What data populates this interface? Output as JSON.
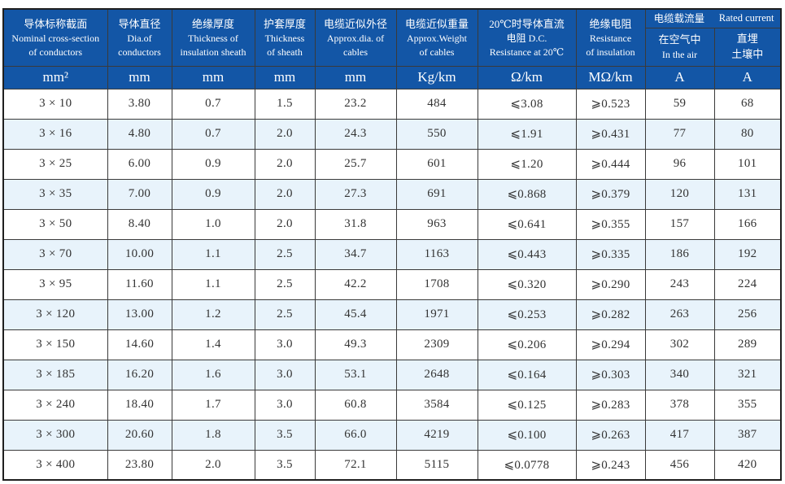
{
  "table_title": "cable-specification-table",
  "colors": {
    "header_bg": "#1356a6",
    "header_text": "#ffffff",
    "stripe": "#e8f3fb",
    "border": "#3a3a3a",
    "text": "#333333"
  },
  "header": {
    "cols": [
      {
        "cn": "导体标称截面",
        "en1": "Nominal cross-section",
        "en2": "of conductors"
      },
      {
        "cn": "导体直径",
        "en1": "Dia.of",
        "en2": "conductors"
      },
      {
        "cn": "绝缘厚度",
        "en1": "Thickness of",
        "en2": "insulation sheath"
      },
      {
        "cn": "护套厚度",
        "en1": "Thickness",
        "en2": "of sheath"
      },
      {
        "cn": "电缆近似外径",
        "en1": "Approx.dia. of",
        "en2": "cables"
      },
      {
        "cn": "电缆近似重量",
        "en1": "Approx.Weight",
        "en2": "of cables"
      },
      {
        "cn": "20℃时导体直流",
        "en1": "电阻 D.C.",
        "en2": "Resistance at 20℃"
      },
      {
        "cn": "绝缘电阻",
        "en1": "Resistance",
        "en2": "of insulation"
      }
    ],
    "rated": {
      "cn_title": "电缆载流量",
      "en_title": "Rated current",
      "air_line1": "在空气中",
      "air_line2": "In the air",
      "soil_line1": "直埋",
      "soil_line2": "土壤中"
    }
  },
  "units": [
    "mm²",
    "mm",
    "mm",
    "mm",
    "mm",
    "Kg/km",
    "Ω/km",
    "MΩ/km",
    "A",
    "A"
  ],
  "rows": [
    [
      "3 × 10",
      "3.80",
      "0.7",
      "1.5",
      "23.2",
      "484",
      "⩽3.08",
      "⩾0.523",
      "59",
      "68"
    ],
    [
      "3 × 16",
      "4.80",
      "0.7",
      "2.0",
      "24.3",
      "550",
      "⩽1.91",
      "⩾0.431",
      "77",
      "80"
    ],
    [
      "3 × 25",
      "6.00",
      "0.9",
      "2.0",
      "25.7",
      "601",
      "⩽1.20",
      "⩾0.444",
      "96",
      "101"
    ],
    [
      "3 × 35",
      "7.00",
      "0.9",
      "2.0",
      "27.3",
      "691",
      "⩽0.868",
      "⩾0.379",
      "120",
      "131"
    ],
    [
      "3 × 50",
      "8.40",
      "1.0",
      "2.0",
      "31.8",
      "963",
      "⩽0.641",
      "⩾0.355",
      "157",
      "166"
    ],
    [
      "3 × 70",
      "10.00",
      "1.1",
      "2.5",
      "34.7",
      "1163",
      "⩽0.443",
      "⩾0.335",
      "186",
      "192"
    ],
    [
      "3 × 95",
      "11.60",
      "1.1",
      "2.5",
      "42.2",
      "1708",
      "⩽0.320",
      "⩾0.290",
      "243",
      "224"
    ],
    [
      "3 × 120",
      "13.00",
      "1.2",
      "2.5",
      "45.4",
      "1971",
      "⩽0.253",
      "⩾0.282",
      "263",
      "256"
    ],
    [
      "3 × 150",
      "14.60",
      "1.4",
      "3.0",
      "49.3",
      "2309",
      "⩽0.206",
      "⩾0.294",
      "302",
      "289"
    ],
    [
      "3 × 185",
      "16.20",
      "1.6",
      "3.0",
      "53.1",
      "2648",
      "⩽0.164",
      "⩾0.303",
      "340",
      "321"
    ],
    [
      "3 × 240",
      "18.40",
      "1.7",
      "3.0",
      "60.8",
      "3584",
      "⩽0.125",
      "⩾0.283",
      "378",
      "355"
    ],
    [
      "3 × 300",
      "20.60",
      "1.8",
      "3.5",
      "66.0",
      "4219",
      "⩽0.100",
      "⩾0.263",
      "417",
      "387"
    ],
    [
      "3 × 400",
      "23.80",
      "2.0",
      "3.5",
      "72.1",
      "5115",
      "⩽0.0778",
      "⩾0.243",
      "456",
      "420"
    ]
  ]
}
